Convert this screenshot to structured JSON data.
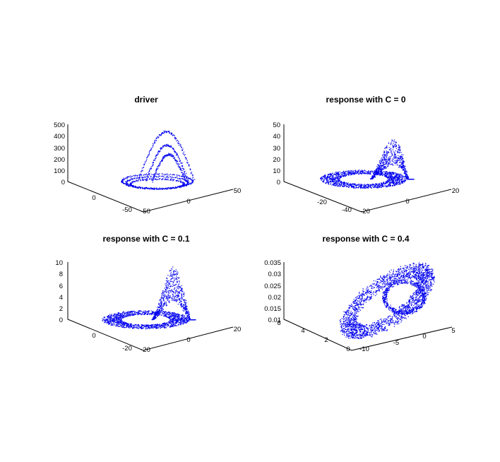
{
  "figure": {
    "background": "#ffffff",
    "point_color": "#0000ee"
  },
  "chart_data": [
    {
      "type": "scatter",
      "title": "driver",
      "z_ticks": [
        "0",
        "100",
        "200",
        "300",
        "400",
        "500"
      ],
      "zlim": [
        0,
        500
      ],
      "left_axis_ticks": [
        "0",
        "-50"
      ],
      "right_axis_ticks": [
        "-50",
        "0",
        "50"
      ],
      "shape": {
        "family": "loops",
        "peak": 450,
        "loops": [
          1.0,
          0.82,
          0.65
        ],
        "top_arches": [
          0.95,
          0.6,
          0.45
        ]
      }
    },
    {
      "type": "scatter",
      "title": "response with C = 0",
      "z_ticks": [
        "0",
        "10",
        "20",
        "30",
        "40",
        "50"
      ],
      "zlim": [
        0,
        50
      ],
      "left_axis_ticks": [
        "-20",
        "-40"
      ],
      "right_axis_ticks": [
        "-20",
        "0",
        "20"
      ],
      "shape": {
        "family": "ring",
        "peak": 48
      }
    },
    {
      "type": "scatter",
      "title": "response with C = 0.1",
      "z_ticks": [
        "0",
        "2",
        "4",
        "6",
        "8",
        "10"
      ],
      "zlim": [
        0,
        10
      ],
      "left_axis_ticks": [
        "0",
        "-20"
      ],
      "right_axis_ticks": [
        "-20",
        "0",
        "20"
      ],
      "shape": {
        "family": "ring",
        "peak": 9.7
      }
    },
    {
      "type": "scatter",
      "title": "response with C = 0.4",
      "z_ticks": [
        "0.01",
        "0.015",
        "0.02",
        "0.025",
        "0.03",
        "0.035"
      ],
      "zlim": [
        0.01,
        0.035
      ],
      "left_axis_ticks": [
        "0",
        "2",
        "4",
        "6"
      ],
      "right_axis_ticks": [
        "-10",
        "-5",
        "0",
        "5"
      ],
      "shape": {
        "family": "tilted-torus"
      }
    }
  ]
}
